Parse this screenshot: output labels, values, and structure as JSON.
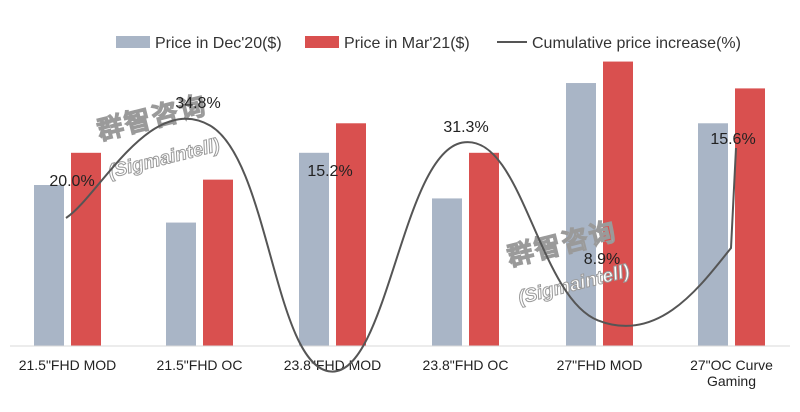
{
  "chart_data": {
    "type": "bar",
    "categories": [
      "21.5\"FHD MOD",
      "21.5\"FHD OC",
      "23.8\"FHD MOD",
      "23.8\"FHD OC",
      "27\"FHD MOD",
      "27\"OC Curve Gaming"
    ],
    "category_lines": [
      [
        "21.5\"FHD MOD"
      ],
      [
        "21.5\"FHD OC"
      ],
      [
        "23.8\"FHD MOD"
      ],
      [
        "23.8\"FHD OC"
      ],
      [
        "27\"FHD MOD"
      ],
      [
        "27\"OC Curve",
        "Gaming"
      ]
    ],
    "series": [
      {
        "name": "Price in Dec'20($)",
        "color": "#a9b5c6",
        "values": [
          60,
          46,
          72,
          55,
          98,
          83
        ]
      },
      {
        "name": "Price in Mar'21($)",
        "color": "#d9504f",
        "values": [
          72,
          62,
          83,
          72,
          106,
          96
        ]
      }
    ],
    "line_series": {
      "name": "Cumulative price increase(%)",
      "color": "#555555",
      "values": [
        20.0,
        34.8,
        15.2,
        31.3,
        8.9,
        15.6
      ],
      "labels": [
        "20.0%",
        "34.8%",
        "15.2%",
        "31.3%",
        "8.9%",
        "15.6%"
      ]
    },
    "ylim": [
      0,
      120
    ],
    "title": "",
    "xlabel": "",
    "ylabel": "",
    "grid": false,
    "legend": "top"
  },
  "watermark": {
    "cn": "群智咨询",
    "en": "(Sigmaintell)"
  }
}
